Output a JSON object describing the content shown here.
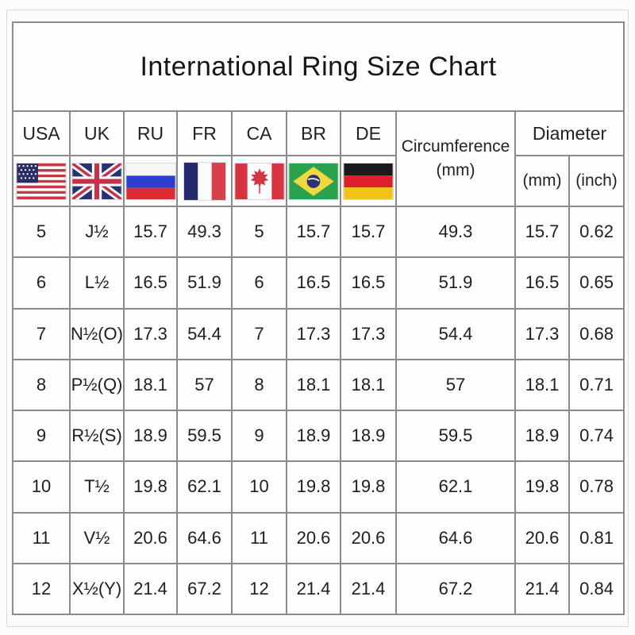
{
  "page_title": "International Ring Size Chart",
  "chart_data": {
    "type": "table",
    "title": "International Ring Size Chart",
    "column_groups": {
      "countries": [
        "USA",
        "UK",
        "RU",
        "FR",
        "CA",
        "BR",
        "DE"
      ],
      "circumference": {
        "label": "Circumference",
        "unit": "(mm)"
      },
      "diameter": {
        "label": "Diameter",
        "units": [
          "(mm)",
          "(inch)"
        ]
      }
    },
    "flags": [
      "usa-flag",
      "uk-flag",
      "russia-flag",
      "france-flag",
      "canada-flag",
      "brazil-flag",
      "germany-flag"
    ],
    "columns": [
      "USA",
      "UK",
      "RU",
      "FR",
      "CA",
      "BR",
      "DE",
      "Circumference (mm)",
      "Diameter (mm)",
      "Diameter (inch)"
    ],
    "rows": [
      [
        "5",
        "J½",
        "15.7",
        "49.3",
        "5",
        "15.7",
        "15.7",
        "49.3",
        "15.7",
        "0.62"
      ],
      [
        "6",
        "L½",
        "16.5",
        "51.9",
        "6",
        "16.5",
        "16.5",
        "51.9",
        "16.5",
        "0.65"
      ],
      [
        "7",
        "N½(O)",
        "17.3",
        "54.4",
        "7",
        "17.3",
        "17.3",
        "54.4",
        "17.3",
        "0.68"
      ],
      [
        "8",
        "P½(Q)",
        "18.1",
        "57",
        "8",
        "18.1",
        "18.1",
        "57",
        "18.1",
        "0.71"
      ],
      [
        "9",
        "R½(S)",
        "18.9",
        "59.5",
        "9",
        "18.9",
        "18.9",
        "59.5",
        "18.9",
        "0.74"
      ],
      [
        "10",
        "T½",
        "19.8",
        "62.1",
        "10",
        "19.8",
        "19.8",
        "62.1",
        "19.8",
        "0.78"
      ],
      [
        "11",
        "V½",
        "20.6",
        "64.6",
        "11",
        "20.6",
        "20.6",
        "64.6",
        "20.6",
        "0.81"
      ],
      [
        "12",
        "X½(Y)",
        "21.4",
        "67.2",
        "12",
        "21.4",
        "21.4",
        "67.2",
        "21.4",
        "0.84"
      ]
    ],
    "layout": {
      "grid": true,
      "header_rows": 3
    }
  },
  "colors": {
    "border": "#8a8a8a",
    "background": "#fcfcfc",
    "text": "#1c1c1c"
  }
}
